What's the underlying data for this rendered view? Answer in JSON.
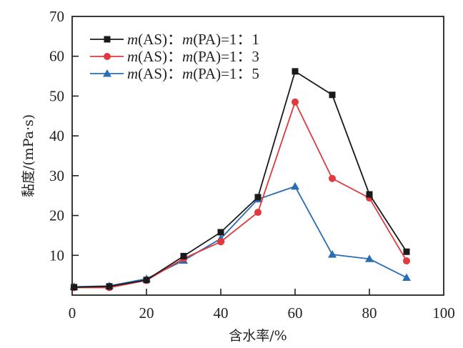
{
  "chart_data": {
    "type": "line",
    "title": "",
    "xlabel": "含水率/%",
    "ylabel": "黏度/(mPa·s)",
    "xlim": [
      0,
      100
    ],
    "ylim": [
      0,
      70
    ],
    "xticks": [
      0,
      20,
      40,
      60,
      80,
      100
    ],
    "yticks": [
      10,
      20,
      30,
      40,
      50,
      60,
      70
    ],
    "xtick_labels": [
      "0",
      "20",
      "40",
      "60",
      "80",
      "100"
    ],
    "ytick_labels": [
      "10",
      "20",
      "30",
      "40",
      "50",
      "60",
      "70"
    ],
    "grid": false,
    "legend_position": "top-left",
    "x": [
      0.5,
      10,
      20,
      30,
      40,
      50,
      60,
      70,
      80,
      90
    ],
    "series": [
      {
        "name": "m(AS)：m(PA)=1：1",
        "legend_parts": [
          "m",
          "(AS)：",
          "m",
          "(PA)=1：1"
        ],
        "color": "#1a1a1a",
        "marker": "square",
        "values": [
          2.0,
          2.2,
          3.8,
          9.8,
          15.8,
          24.6,
          56.2,
          50.3,
          25.3,
          10.9
        ]
      },
      {
        "name": "m(AS)：m(PA)=1：3",
        "legend_parts": [
          "m",
          "(AS)：",
          "m",
          "(PA)=1：3"
        ],
        "color": "#e0393e",
        "marker": "circle",
        "values": [
          1.9,
          1.9,
          3.7,
          9.2,
          13.4,
          20.8,
          48.5,
          29.3,
          24.4,
          8.6
        ]
      },
      {
        "name": "m(AS)：m(PA)=1：5",
        "legend_parts": [
          "m",
          "(AS)：",
          "m",
          "(PA)=1：5"
        ],
        "color": "#2a6db5",
        "marker": "triangle",
        "values": [
          2.1,
          2.3,
          4.1,
          8.7,
          14.2,
          24.1,
          27.3,
          10.2,
          9.1,
          4.4
        ]
      }
    ]
  }
}
